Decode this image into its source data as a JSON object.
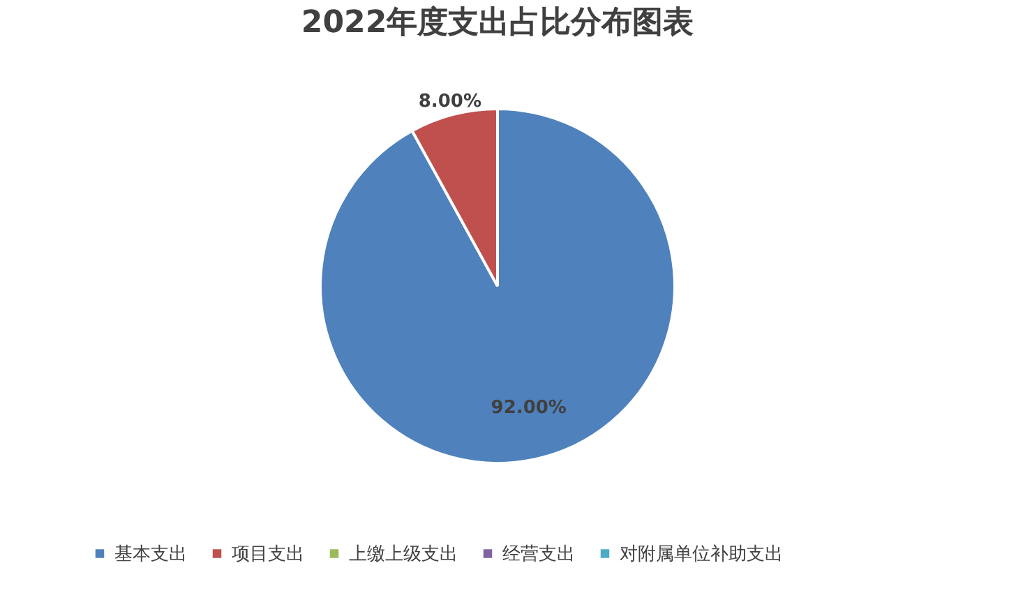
{
  "chart_data": {
    "type": "pie",
    "title": "2022年度支出占比分布图表",
    "categories": [
      "基本支出",
      "项目支出",
      "上缴上级支出",
      "经营支出",
      "对附属单位补助支出"
    ],
    "values": [
      92,
      8,
      0,
      0,
      0
    ],
    "colors": [
      "#4f81bd",
      "#c0504d",
      "#9bbb59",
      "#8064a2",
      "#4bacc6"
    ],
    "value_labels": [
      "92.00%",
      "8.00%",
      null,
      null,
      null
    ],
    "legend": "bottom"
  }
}
